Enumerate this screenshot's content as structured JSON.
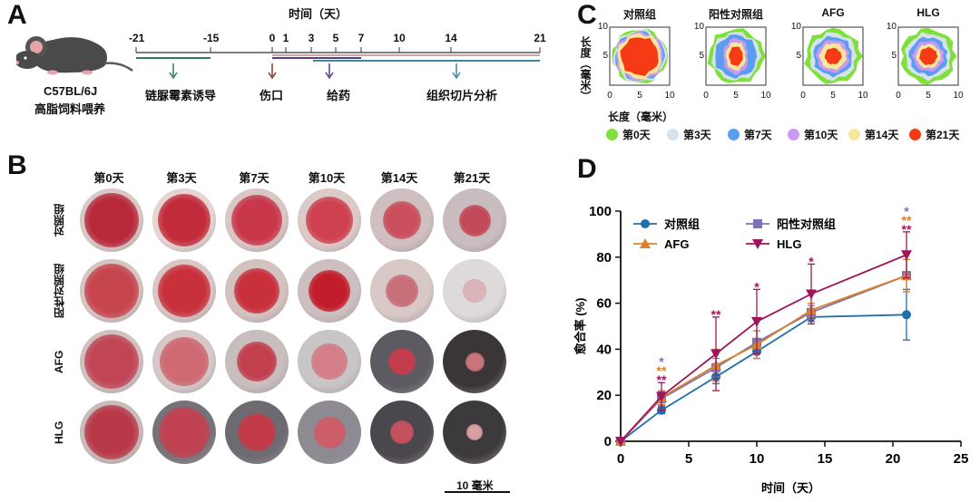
{
  "panelA": {
    "letter": "A",
    "title": "时间（天）",
    "ticks": [
      "-21",
      "-15",
      "0",
      "1",
      "3",
      "5",
      "7",
      "10",
      "14",
      "21"
    ],
    "mouse_line1": "C57BL/6J",
    "mouse_line2": "高脂饲料喂养",
    "events": [
      "链脲霉素诱导",
      "伤口",
      "给药",
      "组织切片分析"
    ],
    "colors": {
      "stz": "#2e7d5b",
      "wound": "#8b3a2a",
      "drug": "#5a3a8c",
      "analysis": "#3a8c9c"
    }
  },
  "panelB": {
    "letter": "B",
    "days": [
      "第0天",
      "第3天",
      "第7天",
      "第10天",
      "第14天",
      "第21天"
    ],
    "groups": [
      "对照组",
      "阳性对照组",
      "AFG",
      "HLG"
    ],
    "scale": "10 毫米"
  },
  "panelC": {
    "letter": "C",
    "groups": [
      "对照组",
      "阳性对照组",
      "AFG",
      "HLG"
    ],
    "ylabel": "长度（毫米）",
    "xlabel": "长度（毫米）",
    "ticks": [
      "0",
      "5",
      "10"
    ],
    "legend": [
      {
        "label": "第0天",
        "color": "#7fe03a"
      },
      {
        "label": "第3天",
        "color": "#d6e2ea"
      },
      {
        "label": "第7天",
        "color": "#5b9ef0"
      },
      {
        "label": "第10天",
        "color": "#c99af0"
      },
      {
        "label": "第14天",
        "color": "#f7e79a"
      },
      {
        "label": "第21天",
        "color": "#f53b16"
      }
    ]
  },
  "chart_data": {
    "type": "line",
    "letter": "D",
    "xlabel": "时间（天）",
    "ylabel": "愈合率 (%)",
    "xlim": [
      0,
      25
    ],
    "ylim": [
      0,
      100
    ],
    "xticks": [
      0,
      5,
      10,
      15,
      20,
      25
    ],
    "yticks": [
      0,
      20,
      40,
      60,
      80,
      100
    ],
    "x": [
      0,
      3,
      7,
      10,
      14,
      21
    ],
    "series": [
      {
        "name": "对照组",
        "color": "#1f6fa8",
        "marker": "circle",
        "values": [
          0,
          13.5,
          28,
          39,
          54,
          55
        ],
        "err": [
          0,
          1.5,
          3,
          3,
          2,
          11
        ]
      },
      {
        "name": "阳性对照组",
        "color": "#7b72b8",
        "marker": "square",
        "values": [
          0,
          18.5,
          32,
          43,
          56,
          72
        ],
        "err": [
          0,
          3,
          4,
          5,
          3,
          7
        ]
      },
      {
        "name": "AFG",
        "color": "#d9822b",
        "marker": "triangle-up",
        "values": [
          0,
          19,
          33,
          42,
          57,
          72
        ],
        "err": [
          0,
          3,
          7,
          6,
          3,
          7
        ]
      },
      {
        "name": "HLG",
        "color": "#a0165a",
        "marker": "triangle-down",
        "values": [
          0,
          19.5,
          38,
          52,
          64,
          81
        ],
        "err": [
          0,
          6,
          16,
          14,
          13,
          10
        ]
      }
    ],
    "annotations": [
      {
        "x": 3,
        "texts": [
          {
            "t": "*",
            "c": "#7b72b8"
          },
          {
            "t": "**",
            "c": "#d9822b"
          },
          {
            "t": "**",
            "c": "#a0165a"
          }
        ]
      },
      {
        "x": 7,
        "texts": [
          {
            "t": "**",
            "c": "#a0165a"
          }
        ]
      },
      {
        "x": 10,
        "texts": [
          {
            "t": "*",
            "c": "#a0165a"
          }
        ]
      },
      {
        "x": 14,
        "texts": [
          {
            "t": "*",
            "c": "#a0165a"
          }
        ]
      },
      {
        "x": 21,
        "texts": [
          {
            "t": "*",
            "c": "#7b72b8"
          },
          {
            "t": "**",
            "c": "#d9822b"
          },
          {
            "t": "**",
            "c": "#a0165a"
          }
        ]
      }
    ]
  }
}
